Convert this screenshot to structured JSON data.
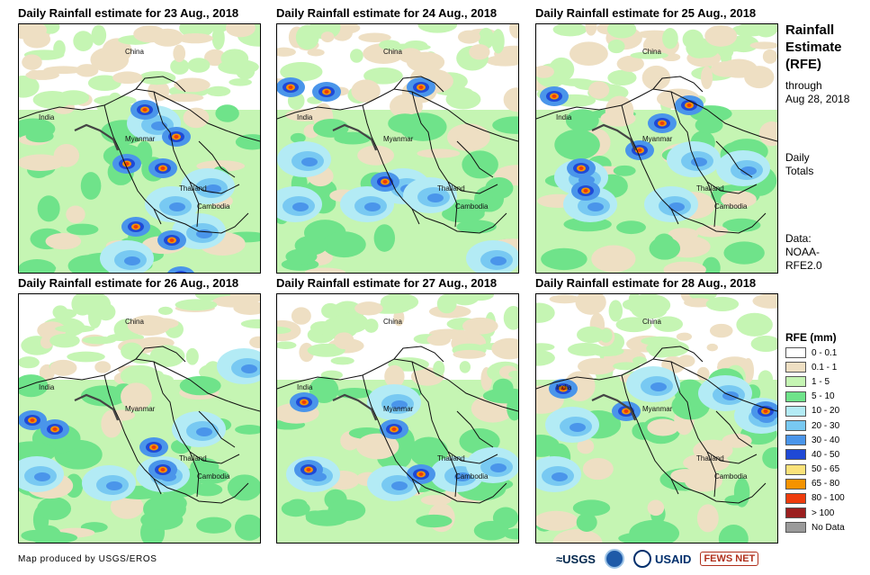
{
  "panels": [
    {
      "title": "Daily Rainfall estimate for 23 Aug., 2018",
      "heavy": [
        [
          140,
          95
        ],
        [
          175,
          125
        ],
        [
          160,
          160
        ],
        [
          130,
          225
        ],
        [
          170,
          240
        ],
        [
          180,
          280
        ],
        [
          120,
          155
        ]
      ],
      "wet": [
        [
          150,
          110
        ],
        [
          170,
          200
        ],
        [
          120,
          260
        ],
        [
          200,
          230
        ],
        [
          210,
          180
        ]
      ]
    },
    {
      "title": "Daily Rainfall estimate for 24 Aug., 2018",
      "heavy": [
        [
          15,
          70
        ],
        [
          55,
          75
        ],
        [
          120,
          175
        ],
        [
          160,
          70
        ]
      ],
      "wet": [
        [
          20,
          200
        ],
        [
          100,
          200
        ],
        [
          140,
          180
        ],
        [
          30,
          150
        ],
        [
          170,
          190
        ],
        [
          240,
          260
        ]
      ]
    },
    {
      "title": "Daily Rainfall estimate for 25 Aug., 2018",
      "heavy": [
        [
          50,
          160
        ],
        [
          115,
          140
        ],
        [
          20,
          80
        ],
        [
          140,
          110
        ],
        [
          170,
          90
        ],
        [
          55,
          185
        ]
      ],
      "wet": [
        [
          50,
          170
        ],
        [
          60,
          200
        ],
        [
          150,
          200
        ],
        [
          230,
          160
        ],
        [
          175,
          150
        ]
      ]
    },
    {
      "title": "Daily Rainfall estimate for 26 Aug., 2018",
      "heavy": [
        [
          15,
          140
        ],
        [
          150,
          170
        ],
        [
          160,
          195
        ],
        [
          40,
          150
        ]
      ],
      "wet": [
        [
          20,
          200
        ],
        [
          100,
          210
        ],
        [
          160,
          200
        ],
        [
          200,
          150
        ],
        [
          250,
          80
        ]
      ]
    },
    {
      "title": "Daily Rainfall estimate for 27 Aug., 2018",
      "heavy": [
        [
          30,
          120
        ],
        [
          130,
          150
        ],
        [
          160,
          200
        ],
        [
          35,
          195
        ]
      ],
      "wet": [
        [
          40,
          200
        ],
        [
          130,
          210
        ],
        [
          200,
          200
        ],
        [
          130,
          120
        ],
        [
          240,
          190
        ]
      ]
    },
    {
      "title": "Daily Rainfall estimate for 28 Aug., 2018",
      "heavy": [
        [
          100,
          130
        ],
        [
          255,
          130
        ],
        [
          30,
          105
        ]
      ],
      "wet": [
        [
          40,
          145
        ],
        [
          130,
          100
        ],
        [
          250,
          135
        ],
        [
          20,
          200
        ],
        [
          210,
          110
        ]
      ]
    }
  ],
  "map_labels": {
    "china": "China",
    "india": "India",
    "myanmar": "Myanmar",
    "thailand": "Thailand",
    "cambodia": "Cambodia"
  },
  "side": {
    "title_line1": "Rainfall",
    "title_line2": "Estimate",
    "title_line3": "(RFE)",
    "through_label": "through",
    "through_date": "Aug 28, 2018",
    "daily_line1": "Daily",
    "daily_line2": "Totals",
    "data_line1": "Data:",
    "data_line2": "NOAA-",
    "data_line3": "RFE2.0"
  },
  "legend": {
    "title": "RFE (mm)",
    "items": [
      {
        "label": "0 - 0.1",
        "color": "#ffffff"
      },
      {
        "label": "0.1 - 1",
        "color": "#eedfc3"
      },
      {
        "label": "1 - 5",
        "color": "#c5f5b3"
      },
      {
        "label": "5 - 10",
        "color": "#6fe38a"
      },
      {
        "label": "10 - 20",
        "color": "#b3ebf5"
      },
      {
        "label": "20 - 30",
        "color": "#78c9f2"
      },
      {
        "label": "30 - 40",
        "color": "#4a95ea"
      },
      {
        "label": "40 - 50",
        "color": "#1f49d6"
      },
      {
        "label": "50 - 65",
        "color": "#fae27a"
      },
      {
        "label": "65 - 80",
        "color": "#f59300"
      },
      {
        "label": "80 - 100",
        "color": "#ee3b0c"
      },
      {
        "label": "> 100",
        "color": "#9b1f1f"
      },
      {
        "label": "No Data",
        "color": "#9a9a9a"
      }
    ]
  },
  "footer": {
    "credit": "Map produced by USGS/EROS",
    "logos": {
      "usgs": "≈USGS",
      "usaid": "USAID",
      "fews": "FEWS NET"
    }
  }
}
